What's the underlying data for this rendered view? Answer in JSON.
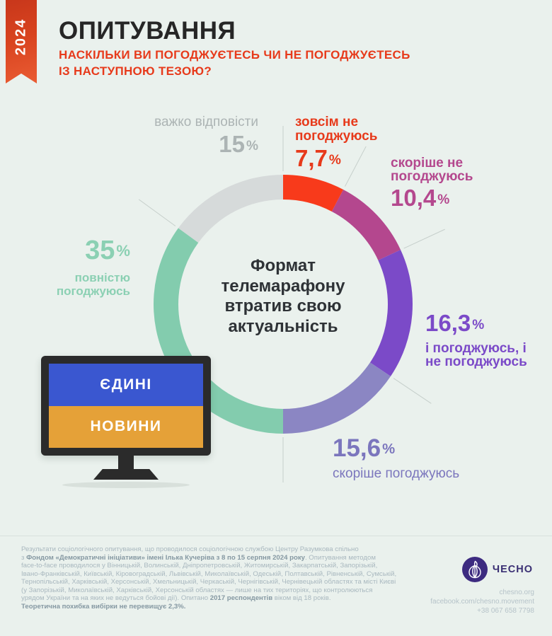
{
  "year_badge": "2024",
  "header": {
    "title": "ОПИТУВАННЯ",
    "subtitle_line1": "НАСКІЛЬКИ ВИ ПОГОДЖУЄТЕСЬ ЧИ НЕ ПОГОДЖУЄТЕСЬ",
    "subtitle_line2": "ІЗ НАСТУПНОЮ ТЕЗОЮ?"
  },
  "chart_data": {
    "type": "pie",
    "subtype": "donut",
    "title": "Формат телемарафону втратив свою актуальність",
    "center_text": "Формат телемарафону втратив свою актуальність",
    "start_angle_deg": 0,
    "direction": "clockwise",
    "percent_sign": "%",
    "slices": [
      {
        "label": "зовсім не погоджуюсь",
        "value": 7.7,
        "display": "7,7",
        "color": "#F83A1B",
        "text_color": "#E73A1B"
      },
      {
        "label": "скоріше не погоджуюсь",
        "value": 10.4,
        "display": "10,4",
        "color": "#B4478E",
        "text_color": "#B4488E"
      },
      {
        "label": "і погоджуюсь, і не погоджуюсь",
        "value": 16.3,
        "display": "16,3",
        "color": "#7B4AC8",
        "text_color": "#7B4AC8"
      },
      {
        "label": "скоріше погоджуюсь",
        "value": 15.6,
        "display": "15,6",
        "color": "#8B86C3",
        "text_color": "#7B76BD"
      },
      {
        "label": "повністю погоджуюсь",
        "value": 35,
        "display": "35",
        "color": "#83CCAE",
        "text_color": "#8BD0B3"
      },
      {
        "label": "важко відповісти",
        "value": 15,
        "display": "15",
        "color": "#D6DADA",
        "text_color": "#ACB4B4"
      }
    ],
    "legend_position": "callouts-around-donut"
  },
  "tv": {
    "top_label": "ЄДИНІ",
    "bottom_label": "НОВИНИ",
    "screen_top_color": "#3A57D0",
    "screen_bottom_color": "#E5A138"
  },
  "footer": {
    "lines": [
      [
        {
          "t": "Результати соціологічного опитування, що проводилося соціологічною службою Центру Разумкова спільно",
          "b": false
        }
      ],
      [
        {
          "t": "з ",
          "b": false
        },
        {
          "t": "Фондом «Демократичні ініціативи» імені Ілька Кучеріва з 8 по 15 серпня 2024 року",
          "b": true
        },
        {
          "t": ". Опитування методом",
          "b": false
        }
      ],
      [
        {
          "t": "face-to-face проводилося у Вінницькій, Волинській, Дніпропетровській, Житомирській, Закарпатській, Запорізькій,",
          "b": false
        }
      ],
      [
        {
          "t": "Івано-Франківській, Київській, Кіровоградській, Львівській, Миколаївській, Одеській, Полтавській, Рівненській, Сумській,",
          "b": false
        }
      ],
      [
        {
          "t": "Тернопільській, Харківській, Херсонській, Хмельницькій, Черкаській, Чернігівській, Чернівецькій областях та місті Києві",
          "b": false
        }
      ],
      [
        {
          "t": "(у Запорізькій, Миколаївській, Харківській, Херсонській областях — лише на тих територіях, що контролюються",
          "b": false
        }
      ],
      [
        {
          "t": "урядом України та на яких не ведуться бойові дії). Опитано ",
          "b": false
        },
        {
          "t": "2017 респондентів",
          "b": true
        },
        {
          "t": " віком від 18 років.",
          "b": false
        }
      ],
      [
        {
          "t": "Теоретична похибка вибірки не перевищує 2,3%.",
          "b": true
        }
      ]
    ]
  },
  "logo": {
    "wordmark": "ЧЕСНО",
    "brand_color": "#3D2B80",
    "website": "chesno.org",
    "facebook": "facebook.com/chesno.movement",
    "phone": "+38 067 658 7798"
  },
  "colors": {
    "background": "#EAF1ED",
    "ribbon_red": "#D8431F",
    "title_dark": "#262626",
    "subtitle_red": "#E73A1B",
    "leader_line": "#C6CFCB",
    "footer_text": "#A9B8BF",
    "footer_bold": "#8598A2"
  }
}
